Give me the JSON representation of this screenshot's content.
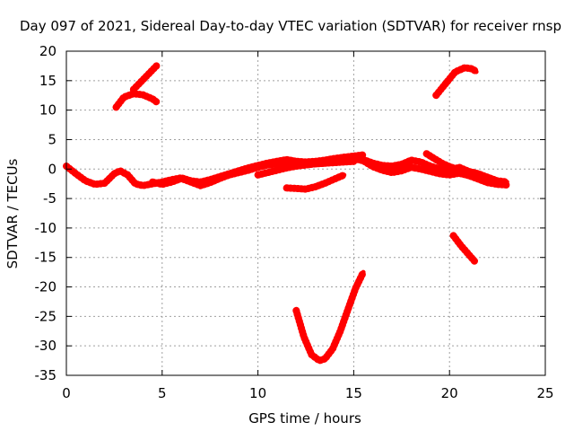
{
  "chart_data": {
    "type": "line",
    "title": "Day 097 of 2021, Sidereal Day-to-day VTEC variation (SDTVAR) for receiver rnsp",
    "xlabel": "GPS time / hours",
    "ylabel": "SDTVAR / TECUs",
    "xlim": [
      0,
      25
    ],
    "ylim": [
      -35,
      20
    ],
    "xticks": [
      0,
      5,
      10,
      15,
      20,
      25
    ],
    "yticks": [
      -35,
      -30,
      -25,
      -20,
      -15,
      -10,
      -5,
      0,
      5,
      10,
      15,
      20
    ],
    "grid": true,
    "color": "#ff0000",
    "series": [
      {
        "name": "main-band-1",
        "x": [
          0,
          0.5,
          1,
          1.5,
          2,
          2.5,
          2.8,
          3.2,
          3.6,
          4,
          4.5,
          5,
          5.5,
          6,
          6.5,
          7,
          7.5,
          8,
          8.5,
          9,
          9.5,
          10,
          10.5,
          11,
          11.5,
          12,
          12.5,
          13,
          13.5,
          14,
          14.5,
          15,
          15.5
        ],
        "y": [
          0.5,
          -0.8,
          -2,
          -2.6,
          -2.4,
          -0.8,
          -0.3,
          -1,
          -2.5,
          -2.8,
          -2.5,
          -2.2,
          -1.8,
          -1.5,
          -2,
          -2.2,
          -1.8,
          -1.3,
          -0.8,
          -0.3,
          0.2,
          0.6,
          1,
          1.3,
          1.6,
          1.3,
          1.2,
          1.3,
          1.5,
          1.8,
          2,
          2.2,
          2.4
        ]
      },
      {
        "name": "main-band-2",
        "x": [
          4.5,
          5,
          5.5,
          6,
          6.5,
          7,
          7.5,
          8,
          8.5,
          9,
          9.5,
          10,
          10.5,
          11,
          11.5,
          12,
          12.5,
          13,
          13.5,
          14,
          14.5,
          15
        ],
        "y": [
          -2.2,
          -2.6,
          -2.2,
          -1.6,
          -2.2,
          -2.8,
          -2.3,
          -1.6,
          -1.0,
          -0.6,
          -0.2,
          0.3,
          0.7,
          0.9,
          1.1,
          1.0,
          0.8,
          0.9,
          1.0,
          1.2,
          1.3,
          1.4
        ]
      },
      {
        "name": "main-band-3",
        "x": [
          15.5,
          16,
          16.5,
          17,
          17.5,
          18,
          18.5,
          19,
          19.5,
          20,
          20.5,
          21,
          21.5,
          22,
          22.5,
          23
        ],
        "y": [
          1.6,
          1.0,
          0.6,
          0.5,
          0.8,
          1.5,
          1.2,
          0.5,
          0.0,
          -0.3,
          0.3,
          -0.4,
          -0.8,
          -1.4,
          -2.0,
          -2.2
        ]
      },
      {
        "name": "main-band-4",
        "x": [
          15,
          15.5,
          16,
          16.5,
          17,
          17.5,
          18,
          18.5,
          19,
          19.5,
          20,
          20.5,
          21,
          21.5,
          22,
          22.5,
          23
        ],
        "y": [
          1.8,
          1.4,
          0.4,
          -0.2,
          -0.6,
          -0.3,
          0.3,
          0.0,
          -0.4,
          -0.8,
          -1.0,
          -0.7,
          -1.1,
          -1.7,
          -2.3,
          -2.6,
          -2.7
        ]
      },
      {
        "name": "short-band-1",
        "x": [
          10,
          10.5,
          11,
          11.5,
          12,
          12.5,
          13,
          13.5,
          14,
          14.5,
          15
        ],
        "y": [
          -1.0,
          -0.6,
          -0.2,
          0.2,
          0.5,
          0.7,
          0.9,
          1.0,
          1.1,
          1.2,
          1.3
        ]
      },
      {
        "name": "short-band-2",
        "x": [
          18.8,
          19.2,
          19.6,
          20,
          20.4,
          20.8,
          21.2
        ],
        "y": [
          2.6,
          1.8,
          1.0,
          0.4,
          0.0,
          -0.5,
          -1.0
        ]
      },
      {
        "name": "low-arc",
        "x": [
          11.5,
          12,
          12.5,
          13,
          13.5,
          14,
          14.5
        ],
        "y": [
          -3.2,
          -3.3,
          -3.4,
          -3.0,
          -2.4,
          -1.7,
          -1.0
        ]
      },
      {
        "name": "upper-arc-left",
        "x": [
          2.6,
          3.0,
          3.5,
          4.0,
          4.5,
          4.7
        ],
        "y": [
          10.5,
          12.2,
          12.8,
          12.6,
          11.9,
          11.4
        ]
      },
      {
        "name": "upper-line-left",
        "x": [
          3.5,
          4.7
        ],
        "y": [
          13.5,
          17.5
        ]
      },
      {
        "name": "upper-arc-right",
        "x": [
          19.3,
          19.8,
          20.3,
          20.8,
          21.2,
          21.4
        ],
        "y": [
          12.5,
          14.5,
          16.5,
          17.2,
          17.0,
          16.5
        ]
      },
      {
        "name": "right-drop",
        "x": [
          20.2,
          20.6,
          21.0,
          21.3
        ],
        "y": [
          -11.3,
          -13.0,
          -14.5,
          -15.6
        ]
      },
      {
        "name": "v-curve",
        "x": [
          12.0,
          12.4,
          12.8,
          13.2,
          13.5,
          13.9,
          14.3,
          14.7,
          15.1,
          15.5
        ],
        "y": [
          -24.0,
          -28.5,
          -31.5,
          -32.5,
          -32.2,
          -30.5,
          -27.5,
          -23.8,
          -20.2,
          -17.5
        ]
      }
    ]
  }
}
